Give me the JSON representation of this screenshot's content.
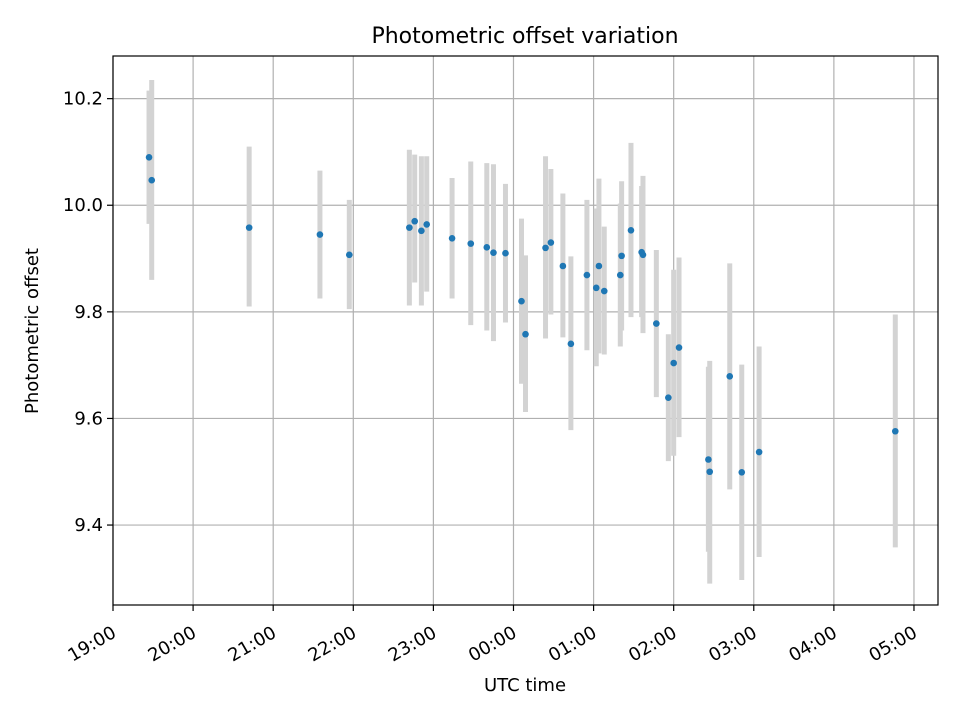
{
  "chart_data": {
    "type": "scatter",
    "title": "Photometric offset variation",
    "xlabel": "UTC time",
    "ylabel": "Photometric offset",
    "x_axis_type": "time",
    "x_ticks": [
      "19:00",
      "20:00",
      "21:00",
      "22:00",
      "23:00",
      "00:00",
      "01:00",
      "02:00",
      "03:00",
      "04:00",
      "05:00"
    ],
    "y_ticks": [
      "9.4",
      "9.6",
      "9.8",
      "10.0",
      "10.2"
    ],
    "y_tick_values": [
      9.4,
      9.6,
      9.8,
      10.0,
      10.2
    ],
    "ylim": [
      9.25,
      10.28
    ],
    "xlim_hours": [
      19.0,
      29.3
    ],
    "grid": true,
    "marker_color": "#1f77b4",
    "errorbar_color": "#d3d3d3",
    "series": [
      {
        "points": [
          {
            "t": "19:27",
            "y": 10.09,
            "lo": 9.965,
            "hi": 10.215
          },
          {
            "t": "19:29",
            "y": 10.047,
            "lo": 9.86,
            "hi": 10.235
          },
          {
            "t": "20:42",
            "y": 9.958,
            "lo": 9.81,
            "hi": 10.11
          },
          {
            "t": "21:35",
            "y": 9.945,
            "lo": 9.825,
            "hi": 10.065
          },
          {
            "t": "21:57",
            "y": 9.907,
            "lo": 9.805,
            "hi": 10.01
          },
          {
            "t": "22:42",
            "y": 9.958,
            "lo": 9.812,
            "hi": 10.104
          },
          {
            "t": "22:46",
            "y": 9.97,
            "lo": 9.855,
            "hi": 10.095
          },
          {
            "t": "22:51",
            "y": 9.952,
            "lo": 9.812,
            "hi": 10.092
          },
          {
            "t": "22:55",
            "y": 9.964,
            "lo": 9.838,
            "hi": 10.092
          },
          {
            "t": "23:14",
            "y": 9.938,
            "lo": 9.825,
            "hi": 10.051
          },
          {
            "t": "23:28",
            "y": 9.928,
            "lo": 9.775,
            "hi": 10.082
          },
          {
            "t": "23:40",
            "y": 9.921,
            "lo": 9.765,
            "hi": 10.079
          },
          {
            "t": "23:45",
            "y": 9.911,
            "lo": 9.745,
            "hi": 10.077
          },
          {
            "t": "23:54",
            "y": 9.91,
            "lo": 9.78,
            "hi": 10.04
          },
          {
            "t": "00:06",
            "y": 9.82,
            "lo": 9.665,
            "hi": 9.975
          },
          {
            "t": "00:09",
            "y": 9.758,
            "lo": 9.612,
            "hi": 9.906
          },
          {
            "t": "00:24",
            "y": 9.92,
            "lo": 9.75,
            "hi": 10.092
          },
          {
            "t": "00:28",
            "y": 9.93,
            "lo": 9.795,
            "hi": 10.068
          },
          {
            "t": "00:37",
            "y": 9.886,
            "lo": 9.752,
            "hi": 10.022
          },
          {
            "t": "00:43",
            "y": 9.74,
            "lo": 9.578,
            "hi": 9.904
          },
          {
            "t": "00:55",
            "y": 9.869,
            "lo": 9.728,
            "hi": 10.01
          },
          {
            "t": "01:02",
            "y": 9.845,
            "lo": 9.698,
            "hi": 9.994
          },
          {
            "t": "01:04",
            "y": 9.886,
            "lo": 9.722,
            "hi": 10.05
          },
          {
            "t": "01:08",
            "y": 9.839,
            "lo": 9.72,
            "hi": 9.96
          },
          {
            "t": "01:20",
            "y": 9.869,
            "lo": 9.735,
            "hi": 10.003
          },
          {
            "t": "01:21",
            "y": 9.905,
            "lo": 9.765,
            "hi": 10.045
          },
          {
            "t": "01:28",
            "y": 9.953,
            "lo": 9.79,
            "hi": 10.117
          },
          {
            "t": "01:36",
            "y": 9.912,
            "lo": 9.79,
            "hi": 10.036
          },
          {
            "t": "01:37",
            "y": 9.907,
            "lo": 9.76,
            "hi": 10.055
          },
          {
            "t": "01:47",
            "y": 9.778,
            "lo": 9.64,
            "hi": 9.916
          },
          {
            "t": "01:56",
            "y": 9.639,
            "lo": 9.52,
            "hi": 9.758
          },
          {
            "t": "02:00",
            "y": 9.704,
            "lo": 9.53,
            "hi": 9.879
          },
          {
            "t": "02:04",
            "y": 9.733,
            "lo": 9.565,
            "hi": 9.902
          },
          {
            "t": "02:26",
            "y": 9.523,
            "lo": 9.35,
            "hi": 9.697
          },
          {
            "t": "02:27",
            "y": 9.5,
            "lo": 9.29,
            "hi": 9.708
          },
          {
            "t": "02:42",
            "y": 9.679,
            "lo": 9.467,
            "hi": 9.891
          },
          {
            "t": "02:51",
            "y": 9.499,
            "lo": 9.297,
            "hi": 9.701
          },
          {
            "t": "03:04",
            "y": 9.537,
            "lo": 9.34,
            "hi": 9.735
          },
          {
            "t": "04:46",
            "y": 9.576,
            "lo": 9.358,
            "hi": 9.795
          }
        ]
      }
    ]
  }
}
